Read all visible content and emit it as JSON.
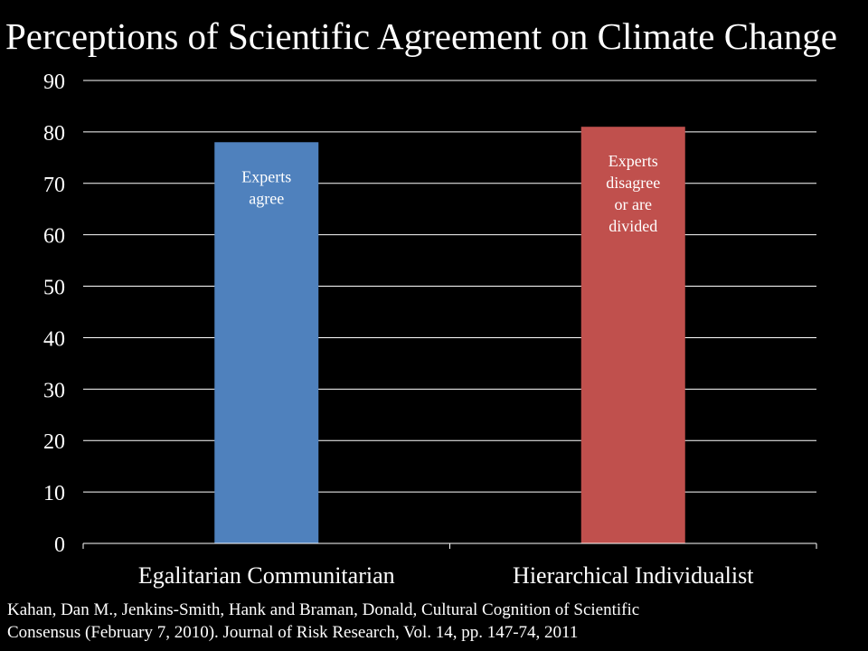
{
  "slide": {
    "title": "Perceptions of Scientific Agreement on Climate Change",
    "citation_lines": [
      "Kahan, Dan M., Jenkins-Smith, Hank and Braman, Donald, Cultural Cognition of Scientific",
      "Consensus (February 7, 2010). Journal of Risk Research, Vol. 14, pp. 147-74, 2011"
    ]
  },
  "chart_data": {
    "type": "bar",
    "title": "",
    "xlabel": "",
    "ylabel": "",
    "categories": [
      "Egalitarian Communitarian",
      "Hierarchical Individualist"
    ],
    "values": [
      78,
      81
    ],
    "bar_colors": [
      "#4f81bd",
      "#c0504d"
    ],
    "bar_labels": [
      [
        "Experts",
        "agree"
      ],
      [
        "Experts",
        "disagree",
        "or are",
        "divided"
      ]
    ],
    "ylim": [
      0,
      90
    ],
    "yticks": [
      0,
      10,
      20,
      30,
      40,
      50,
      60,
      70,
      80,
      90
    ],
    "grid": true,
    "legend": "none",
    "colors": {
      "background": "#000000",
      "text": "#ffffff",
      "gridline": "#ffffff",
      "bar_label_text": "#ffffff"
    }
  }
}
